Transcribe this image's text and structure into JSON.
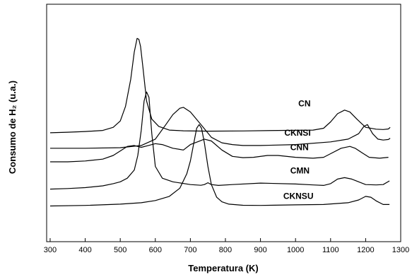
{
  "chart_data": {
    "type": "line",
    "xlabel": "Temperatura (K)",
    "ylabel": "Consumo de H₂ (u.a.)",
    "xlim": [
      290,
      1300
    ],
    "xticks": [
      300,
      400,
      500,
      600,
      700,
      800,
      900,
      1000,
      1100,
      1200,
      1300
    ],
    "ylim": [
      0,
      100
    ],
    "yticks_shown": false,
    "grid": false,
    "legend": "none; series labelled directly on curves",
    "series": [
      {
        "name": "CN",
        "x": [
          300,
          350,
          400,
          450,
          480,
          500,
          515,
          530,
          540,
          548,
          553,
          558,
          565,
          575,
          590,
          610,
          640,
          680,
          750,
          850,
          950,
          1050,
          1080,
          1100,
          1120,
          1140,
          1155,
          1175,
          1200,
          1230,
          1250,
          1265,
          1270
        ],
        "y": [
          40.5,
          40.8,
          41.2,
          41.8,
          43.5,
          47.0,
          55.0,
          70.0,
          85.0,
          92.5,
          92.0,
          88.0,
          76.0,
          58.0,
          48.0,
          44.0,
          42.0,
          41.6,
          41.4,
          41.5,
          41.8,
          42.0,
          43.0,
          46.5,
          51.0,
          53.0,
          52.0,
          48.0,
          43.5,
          42.5,
          42.3,
          42.6,
          43.5
        ]
      },
      {
        "name": "CKNSI",
        "x": [
          300,
          400,
          500,
          560,
          600,
          630,
          650,
          670,
          680,
          700,
          730,
          760,
          790,
          820,
          850,
          900,
          1000,
          1100,
          1150,
          1180,
          1195,
          1205,
          1220,
          1235,
          1250,
          1265,
          1270
        ],
        "y": [
          32.0,
          32.0,
          32.3,
          33.5,
          37.0,
          45.0,
          50.5,
          54.0,
          54.5,
          52.0,
          45.0,
          38.0,
          35.0,
          34.0,
          33.5,
          33.5,
          34.0,
          35.5,
          37.0,
          40.0,
          44.0,
          45.0,
          40.0,
          37.0,
          36.5,
          36.8,
          37.5
        ]
      },
      {
        "name": "CNN",
        "x": [
          300,
          350,
          400,
          450,
          480,
          500,
          520,
          540,
          560,
          580,
          600,
          620,
          650,
          680,
          700,
          720,
          740,
          760,
          790,
          820,
          850,
          880,
          920,
          950,
          1000,
          1050,
          1080,
          1100,
          1130,
          1155,
          1170,
          1190,
          1210,
          1240,
          1265
        ],
        "y": [
          24.5,
          24.5,
          25.0,
          26.0,
          28.0,
          30.5,
          33.0,
          33.5,
          32.5,
          33.5,
          34.5,
          34.0,
          32.0,
          31.0,
          34.0,
          35.5,
          37.0,
          36.0,
          31.0,
          27.5,
          26.8,
          27.0,
          28.0,
          28.0,
          27.0,
          26.5,
          27.0,
          29.0,
          32.0,
          33.0,
          32.0,
          29.5,
          27.0,
          26.5,
          27.0
        ]
      },
      {
        "name": "CMN",
        "x": [
          300,
          350,
          400,
          450,
          480,
          500,
          520,
          540,
          550,
          560,
          568,
          575,
          582,
          590,
          600,
          620,
          650,
          700,
          730,
          740,
          750,
          760,
          780,
          820,
          900,
          1000,
          1050,
          1080,
          1100,
          1120,
          1140,
          1160,
          1180,
          1200,
          1230,
          1250,
          1268
        ],
        "y": [
          9.5,
          9.8,
          10.3,
          11.3,
          12.5,
          13.5,
          15.5,
          20.0,
          28.0,
          42.0,
          58.0,
          63.0,
          60.0,
          40.0,
          22.0,
          15.5,
          13.5,
          12.0,
          11.6,
          12.0,
          13.0,
          12.0,
          11.5,
          12.0,
          12.8,
          12.3,
          11.8,
          11.5,
          12.5,
          15.0,
          15.8,
          15.0,
          13.5,
          12.0,
          11.8,
          12.0,
          14.0
        ]
      },
      {
        "name": "CKNSU",
        "x": [
          300,
          400,
          500,
          560,
          600,
          640,
          670,
          690,
          700,
          710,
          718,
          725,
          732,
          740,
          750,
          760,
          775,
          790,
          810,
          850,
          900,
          1000,
          1080,
          1150,
          1180,
          1200,
          1215,
          1230,
          1250,
          1268
        ],
        "y": [
          0.2,
          0.5,
          1.2,
          2.0,
          3.2,
          5.5,
          10.0,
          18.0,
          25.0,
          35.0,
          43.0,
          45.0,
          43.0,
          35.0,
          22.0,
          12.0,
          5.0,
          2.5,
          1.2,
          0.6,
          0.5,
          0.8,
          1.0,
          2.0,
          3.5,
          5.5,
          5.0,
          3.0,
          1.0,
          1.0
        ]
      }
    ],
    "labels": [
      {
        "text": "CN",
        "x": 1008,
        "y": 55
      },
      {
        "text": "CKNSI",
        "x": 968,
        "y": 39
      },
      {
        "text": "CNN",
        "x": 985,
        "y": 31
      },
      {
        "text": "CMN",
        "x": 985,
        "y": 18
      },
      {
        "text": "CKNSU",
        "x": 965,
        "y": 4
      }
    ]
  }
}
